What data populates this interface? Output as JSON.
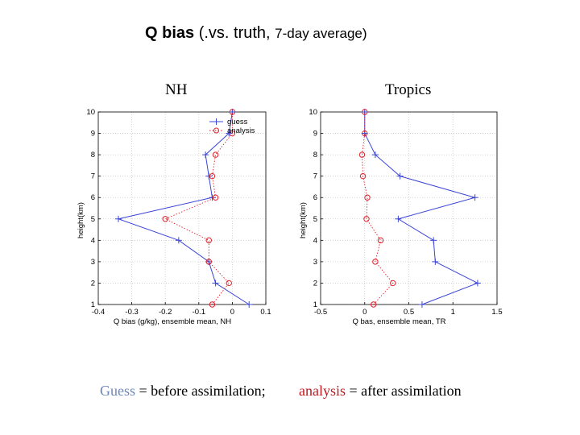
{
  "title": {
    "bold": "Q bias",
    "mid": "(.vs. truth,",
    "small": "7-day average)"
  },
  "panel_labels": {
    "left": "NH",
    "right": "Tropics"
  },
  "caption": {
    "guess_word": "Guess",
    "guess_rest": " = before assimilation;",
    "analysis_word": "analysis",
    "analysis_rest": " = after assimilation"
  },
  "colors": {
    "guess": "#3a45d8",
    "analysis": "#e0202a",
    "guess_caption": "#6f86b8",
    "analysis_caption": "#c0161c"
  },
  "chart_data": [
    {
      "type": "line",
      "title": "",
      "xlabel": "Q bias (g/kg), ensemble mean, NH",
      "ylabel": "height(km)",
      "xlim": [
        -0.4,
        0.1
      ],
      "ylim": [
        1,
        10
      ],
      "xticks": [
        "-0.4",
        "-0.3",
        "-0.2",
        "-0.1",
        "0",
        "0.1"
      ],
      "xtick_values": [
        -0.4,
        -0.3,
        -0.2,
        -0.1,
        0,
        0.1
      ],
      "yticks": [
        "1",
        "2",
        "3",
        "4",
        "5",
        "6",
        "7",
        "8",
        "9",
        "10"
      ],
      "grid": true,
      "legend": "top-right",
      "series": [
        {
          "name": "guess",
          "style": "solid",
          "marker": "plus",
          "x": [
            0.05,
            -0.05,
            -0.07,
            -0.16,
            -0.34,
            -0.06,
            -0.07,
            -0.08,
            -0.01,
            0.0
          ],
          "y": [
            1,
            2,
            3,
            4,
            5,
            6,
            7,
            8,
            9,
            10
          ]
        },
        {
          "name": "analysis",
          "style": "dotted",
          "marker": "circle",
          "x": [
            -0.06,
            -0.01,
            -0.07,
            -0.07,
            -0.2,
            -0.05,
            -0.06,
            -0.05,
            0.0,
            0.0
          ],
          "y": [
            1,
            2,
            3,
            4,
            5,
            6,
            7,
            8,
            9,
            10
          ]
        }
      ]
    },
    {
      "type": "line",
      "title": "",
      "xlabel": "Q bas, ensemble mean, TR",
      "ylabel": "height(km)",
      "xlim": [
        -0.5,
        1.5
      ],
      "ylim": [
        1,
        10
      ],
      "xticks": [
        "-0.5",
        "0",
        "0.5",
        "1",
        "1.5"
      ],
      "xtick_values": [
        -0.5,
        0,
        0.5,
        1,
        1.5
      ],
      "yticks": [
        "1",
        "2",
        "3",
        "4",
        "5",
        "6",
        "7",
        "8",
        "9",
        "10"
      ],
      "grid": true,
      "series": [
        {
          "name": "guess",
          "style": "solid",
          "marker": "plus",
          "x": [
            0.65,
            1.28,
            0.8,
            0.78,
            0.38,
            1.25,
            0.4,
            0.12,
            0.0,
            0.0
          ],
          "y": [
            1,
            2,
            3,
            4,
            5,
            6,
            7,
            8,
            9,
            10
          ]
        },
        {
          "name": "analysis",
          "style": "dotted",
          "marker": "circle",
          "x": [
            0.1,
            0.32,
            0.12,
            0.18,
            0.02,
            0.03,
            -0.02,
            -0.03,
            0.0,
            0.0
          ],
          "y": [
            1,
            2,
            3,
            4,
            5,
            6,
            7,
            8,
            9,
            10
          ]
        }
      ]
    }
  ]
}
